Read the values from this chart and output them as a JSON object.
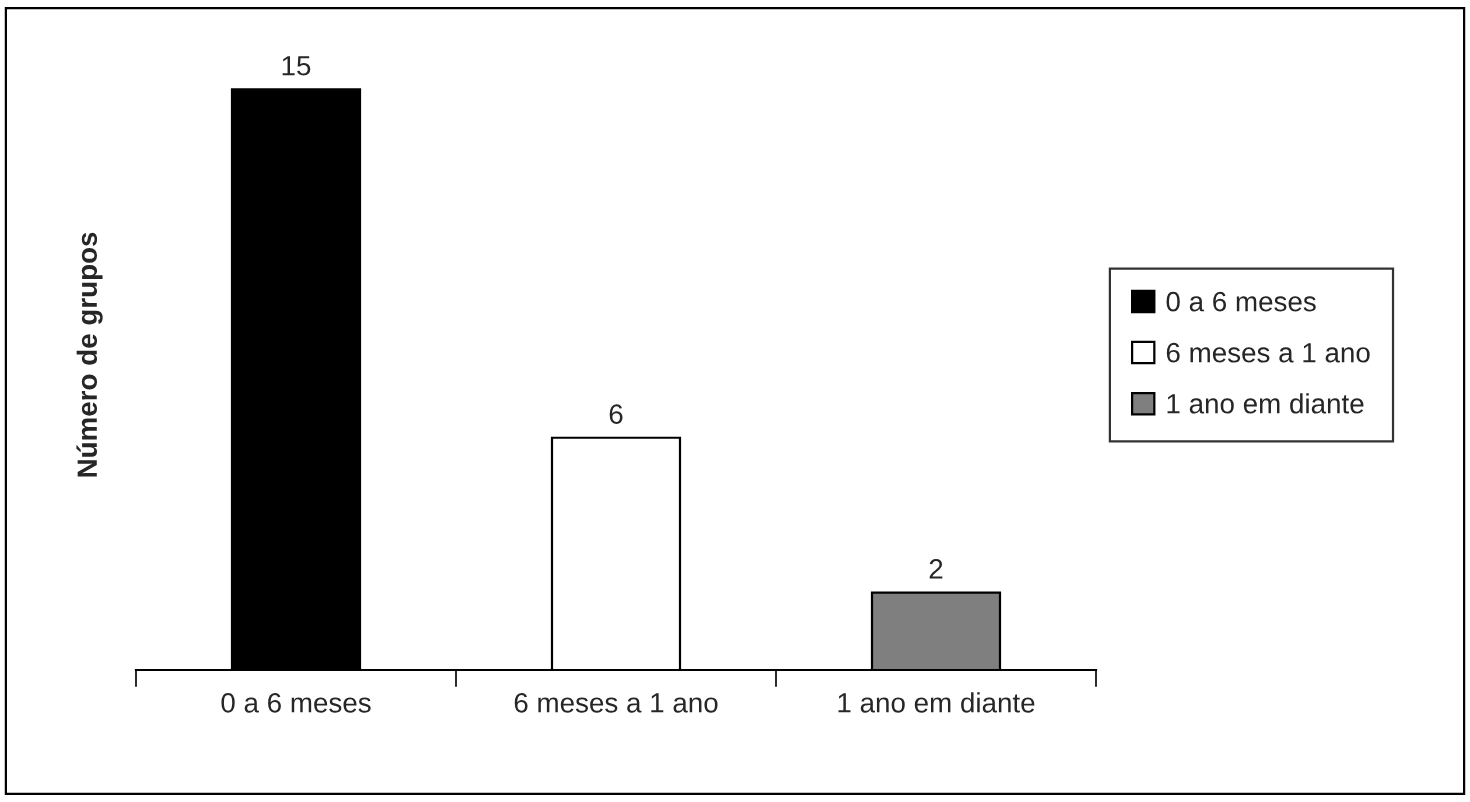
{
  "chart_data": {
    "type": "bar",
    "ylabel": "Número de grupos",
    "categories": [
      "0 a 6 meses",
      "6 meses a 1 ano",
      "1 ano em diante"
    ],
    "series": [
      {
        "name": "0 a 6 meses",
        "color": "#000000",
        "values": [
          15,
          null,
          null
        ]
      },
      {
        "name": "6 meses a 1 ano",
        "color": "#ffffff",
        "values": [
          null,
          6,
          null
        ]
      },
      {
        "name": "1 ano em diante",
        "color": "#7f7f7f",
        "values": [
          null,
          null,
          2
        ]
      }
    ],
    "data_labels": true,
    "legend": "right",
    "grid": false
  }
}
